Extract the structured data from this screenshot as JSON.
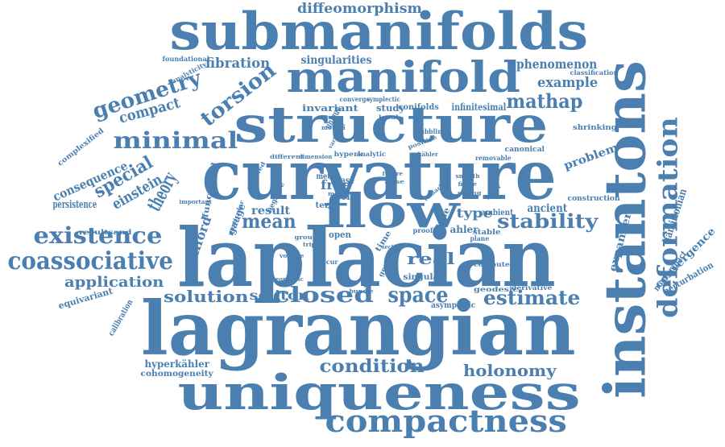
{
  "accent_color": "#4a7fb0",
  "words": [
    {
      "name": "laplacian",
      "text": "laplacian"
    },
    {
      "name": "lagrangian",
      "text": "lagrangian"
    },
    {
      "name": "curvature",
      "text": "curvature"
    },
    {
      "name": "submanifolds",
      "text": "submanifolds"
    },
    {
      "name": "instantons",
      "text": "instantons"
    },
    {
      "name": "uniqueness",
      "text": "uniqueness"
    },
    {
      "name": "structure",
      "text": "structure"
    },
    {
      "name": "manifold",
      "text": "manifold"
    },
    {
      "name": "flow",
      "text": "flow"
    },
    {
      "name": "compactness",
      "text": "compactness"
    },
    {
      "name": "deformation",
      "text": "deformation"
    },
    {
      "name": "coassociative",
      "text": "coassociative"
    },
    {
      "name": "existence",
      "text": "existence"
    },
    {
      "name": "minimal",
      "text": "minimal"
    },
    {
      "name": "geometry",
      "text": "geometry"
    },
    {
      "name": "torsion",
      "text": "torsion"
    },
    {
      "name": "stability",
      "text": "stability"
    },
    {
      "name": "mathap",
      "text": "mathap"
    },
    {
      "name": "closed",
      "text": "closed"
    },
    {
      "name": "space",
      "text": "space"
    },
    {
      "name": "estimate",
      "text": "estimate"
    },
    {
      "name": "holonomy",
      "text": "holonomy"
    },
    {
      "name": "condition",
      "text": "condition"
    },
    {
      "name": "solution",
      "text": "solution"
    },
    {
      "name": "application",
      "text": "application"
    },
    {
      "name": "mean",
      "text": "mean"
    },
    {
      "name": "theory",
      "text": "theory"
    },
    {
      "name": "special",
      "text": "special"
    },
    {
      "name": "einstein",
      "text": "einstein"
    },
    {
      "name": "diffeomorphism",
      "text": "diffeomorphism"
    },
    {
      "name": "fibration",
      "text": "fibration"
    },
    {
      "name": "phenomenon",
      "text": "phenomenon"
    },
    {
      "name": "example",
      "text": "example"
    },
    {
      "name": "singularities",
      "text": "singularities"
    },
    {
      "name": "compact",
      "text": "compact"
    },
    {
      "name": "consequence",
      "text": "consequence"
    },
    {
      "name": "persistence",
      "text": "persistence"
    },
    {
      "name": "clifford",
      "text": "clifford"
    },
    {
      "name": "functional",
      "text": "functional"
    },
    {
      "name": "problem",
      "text": "problem"
    },
    {
      "name": "convergence",
      "text": "convergence"
    },
    {
      "name": "expander",
      "text": "expander"
    },
    {
      "name": "hamiltonian",
      "text": "hamiltonian"
    },
    {
      "name": "noncompact",
      "text": "noncompact"
    },
    {
      "name": "perturbation",
      "text": "perturbation"
    },
    {
      "name": "real",
      "text": "real"
    },
    {
      "name": "soliton",
      "text": "soliton"
    },
    {
      "name": "result",
      "text": "result"
    },
    {
      "name": "type",
      "text": "type"
    },
    {
      "name": "ancient",
      "text": "ancient"
    },
    {
      "name": "free",
      "text": "free"
    },
    {
      "name": "hyperkahler",
      "text": "hyperkähler"
    },
    {
      "name": "cohomogeneity",
      "text": "cohomogeneity"
    },
    {
      "name": "equivariant",
      "text": "equivariant"
    },
    {
      "name": "calibration",
      "text": "calibration"
    },
    {
      "name": "asymptotic",
      "text": "asymptotic"
    },
    {
      "name": "unique",
      "text": "unique"
    },
    {
      "name": "gauge",
      "text": "gauge"
    },
    {
      "name": "complexified",
      "text": "complexified"
    },
    {
      "name": "foundational",
      "text": "foundational"
    },
    {
      "name": "analyticity",
      "text": "analyticity"
    },
    {
      "name": "classification",
      "text": "classification"
    },
    {
      "name": "invariant",
      "text": "invariant"
    },
    {
      "name": "study",
      "text": "study"
    },
    {
      "name": "conifolds",
      "text": "conifolds"
    },
    {
      "name": "infinitesimal",
      "text": "infinitesimal"
    },
    {
      "name": "shrinking",
      "text": "shrinking"
    },
    {
      "name": "canonical",
      "text": "canonical"
    },
    {
      "name": "removable",
      "text": "removable"
    },
    {
      "name": "construction",
      "text": "construction"
    },
    {
      "name": "resultsand",
      "text": "resultsand"
    },
    {
      "name": "important",
      "text": "important"
    },
    {
      "name": "coupled",
      "text": "coupled"
    },
    {
      "name": "different",
      "text": "different"
    },
    {
      "name": "dimension",
      "text": "dimension"
    },
    {
      "name": "hyperk",
      "text": "hyperk"
    },
    {
      "name": "analytic",
      "text": "analytic"
    },
    {
      "name": "kahler-small",
      "text": "kähler"
    },
    {
      "name": "metric",
      "text": "metric"
    },
    {
      "name": "case",
      "text": "case"
    },
    {
      "name": "self",
      "text": "self"
    },
    {
      "name": "ambient",
      "text": "ambient"
    },
    {
      "name": "open",
      "text": "open"
    },
    {
      "name": "ahler",
      "text": "ahler"
    },
    {
      "name": "stable",
      "text": "stable"
    },
    {
      "name": "singular",
      "text": "singular"
    },
    {
      "name": "compute",
      "text": "compute"
    },
    {
      "name": "geodesic",
      "text": "geodesic"
    },
    {
      "name": "derivative",
      "text": "derivative"
    },
    {
      "name": "term",
      "text": "term"
    },
    {
      "name": "cone",
      "text": "cone"
    },
    {
      "name": "time",
      "text": "time"
    },
    {
      "name": "negative",
      "text": "negative"
    },
    {
      "name": "converge",
      "text": "converge"
    },
    {
      "name": "symplectic",
      "text": "symplectic"
    },
    {
      "name": "bubbling",
      "text": "bubbling"
    },
    {
      "name": "positive",
      "text": "positive"
    },
    {
      "name": "smooth",
      "text": "smooth"
    },
    {
      "name": "strong",
      "text": "strong"
    },
    {
      "name": "remark",
      "text": "remark"
    },
    {
      "name": "proof",
      "text": "proof"
    },
    {
      "name": "generic",
      "text": "generic"
    },
    {
      "name": "plane",
      "text": "plane"
    },
    {
      "name": "occur",
      "text": "occur"
    },
    {
      "name": "group",
      "text": "group"
    },
    {
      "name": "triple",
      "text": "triple"
    },
    {
      "name": "volume",
      "text": "volume"
    },
    {
      "name": "geometric",
      "text": "geometric"
    },
    {
      "name": "bundle",
      "text": "bundle"
    },
    {
      "name": "particular",
      "text": "particular"
    },
    {
      "name": "local",
      "text": "local"
    },
    {
      "name": "motion",
      "text": "motion"
    },
    {
      "name": "variation",
      "text": "variation"
    },
    {
      "name": "future",
      "text": "future"
    },
    {
      "name": "arise",
      "text": "arise"
    },
    {
      "name": "section",
      "text": "section"
    },
    {
      "name": "neutral",
      "text": "neutral"
    },
    {
      "name": "more",
      "text": "more"
    },
    {
      "name": "finite",
      "text": "finite"
    },
    {
      "name": "vector",
      "text": "vector"
    }
  ]
}
